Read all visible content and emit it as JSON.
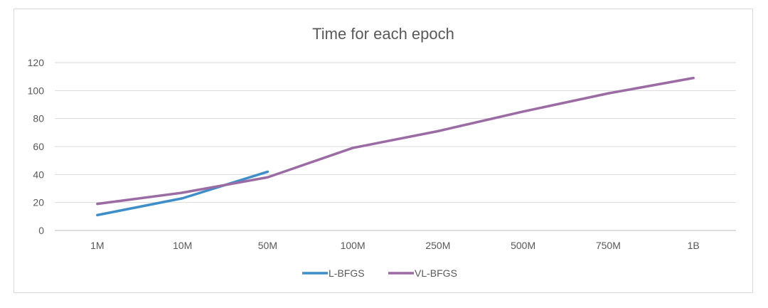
{
  "chart_data": {
    "type": "line",
    "title": "Time for each epoch",
    "xlabel": "",
    "ylabel": "",
    "categories": [
      "1M",
      "10M",
      "50M",
      "100M",
      "250M",
      "500M",
      "750M",
      "1B"
    ],
    "ylim": [
      0,
      120
    ],
    "yticks": [
      0,
      20,
      40,
      60,
      80,
      100,
      120
    ],
    "grid": true,
    "legend_position": "bottom",
    "series": [
      {
        "name": "L-BFGS",
        "color": "#3d8ec9",
        "values": [
          11,
          23,
          42,
          null,
          null,
          null,
          null,
          null
        ]
      },
      {
        "name": "VL-BFGS",
        "color": "#9b6ba3",
        "values": [
          19,
          27,
          38,
          59,
          71,
          85,
          98,
          109
        ]
      }
    ]
  }
}
